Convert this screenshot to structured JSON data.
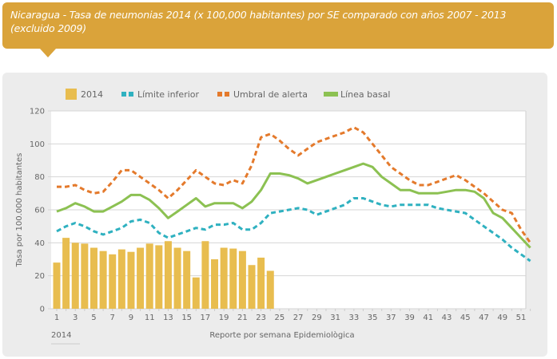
{
  "header": {
    "title": "Nicaragua - Tasa de neumonias 2014 (x 100,000 habitantes) por SE comparado con años 2007 - 2013 (excluido 2009)"
  },
  "colors": {
    "banner": "#daa33a",
    "bars": "#e8bd4f",
    "lower": "#2fb1c0",
    "alert": "#e47a2c",
    "baseline": "#8cc152"
  },
  "chart_data": {
    "type": "bar+line",
    "title": "Nicaragua - Tasa de neumonias 2014 (x 100,000 habitantes) por SE comparado con años 2007 - 2013 (excluido 2009)",
    "xlabel": "Reporte por semana Epidemiològica",
    "ylabel": "Tasa por 100.000 habitantes",
    "x_caption": "2014",
    "ylim": [
      0,
      120
    ],
    "yticks": [
      0,
      20,
      40,
      60,
      80,
      100,
      120
    ],
    "xticks": [
      1,
      3,
      5,
      7,
      9,
      11,
      13,
      15,
      17,
      19,
      21,
      23,
      25,
      27,
      29,
      31,
      33,
      35,
      37,
      39,
      41,
      43,
      45,
      47,
      49,
      51
    ],
    "weeks": 52,
    "grid": true,
    "legend_position": "top",
    "series": [
      {
        "name": "2014",
        "kind": "bar",
        "values": [
          28,
          43,
          40,
          39.5,
          37,
          35,
          33,
          36,
          34.5,
          37,
          39.5,
          38.5,
          41,
          37,
          35,
          19,
          41,
          30,
          37,
          36.5,
          35,
          26.5,
          31,
          23
        ]
      },
      {
        "name": "Límite inferior",
        "kind": "dashed-line",
        "values": [
          47,
          50,
          52,
          50,
          47,
          45,
          47,
          49,
          53,
          54,
          52,
          46,
          43,
          45,
          47,
          49,
          48,
          51,
          51,
          52,
          48,
          48,
          52,
          58,
          59,
          60,
          61,
          60,
          57,
          59,
          61,
          63,
          67,
          67,
          65,
          63,
          62,
          63,
          63,
          63,
          63,
          61,
          60,
          59,
          58,
          54,
          50,
          46,
          42,
          37,
          33,
          29
        ]
      },
      {
        "name": "Umbral de alerta",
        "kind": "dashed-line",
        "values": [
          74,
          74,
          75,
          72,
          70,
          71,
          77,
          84,
          84,
          80,
          76,
          72,
          67,
          72,
          78,
          84,
          80,
          76,
          75,
          78,
          76,
          87,
          104,
          106,
          102,
          97,
          93,
          97,
          101,
          103,
          105,
          107,
          110,
          107,
          100,
          93,
          86,
          82,
          78,
          75,
          75,
          77,
          79,
          81,
          78,
          74,
          70,
          65,
          60,
          58,
          48,
          40
        ]
      },
      {
        "name": "Línea basal",
        "kind": "line",
        "values": [
          59,
          61,
          64,
          62,
          59,
          59,
          62,
          65,
          69,
          69,
          66,
          61,
          55,
          59,
          63,
          67,
          62,
          64,
          64,
          64,
          61,
          65,
          72,
          82,
          82,
          81,
          79,
          76,
          78,
          80,
          82,
          84,
          86,
          88,
          86,
          80,
          76,
          72,
          72,
          70,
          70,
          70,
          71,
          72,
          72,
          71,
          67,
          58,
          55,
          49,
          43,
          37
        ]
      }
    ]
  }
}
